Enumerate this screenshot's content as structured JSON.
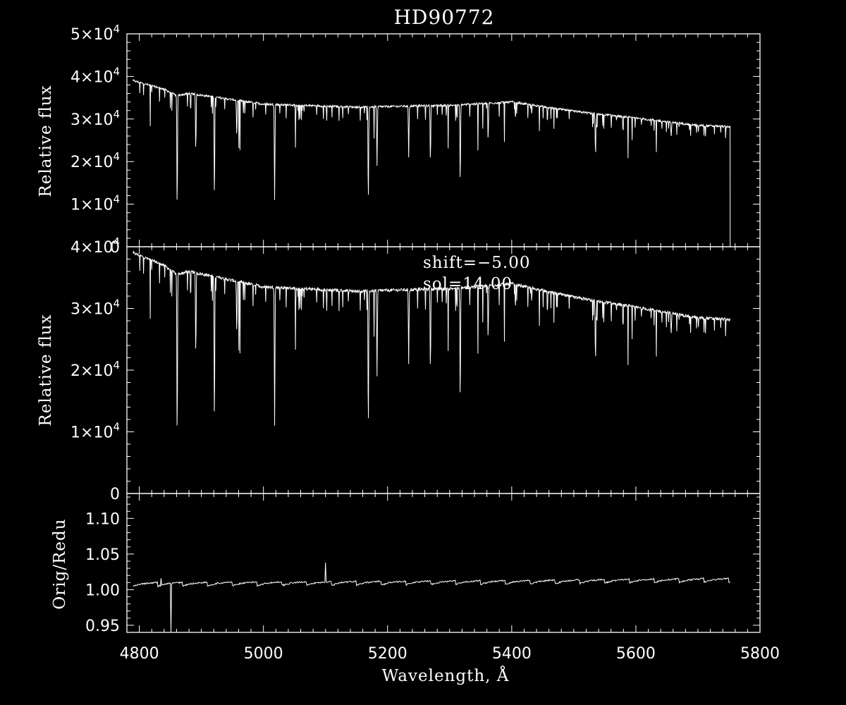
{
  "colors": {
    "background": "#000000",
    "foreground": "#ffffff"
  },
  "title": "HD90772",
  "xlabel": "Wavelength, Å",
  "x_ticks": [
    "4800",
    "5000",
    "5200",
    "5400",
    "5600",
    "5800"
  ],
  "panel1": {
    "ylabel": "Relative flux",
    "y_ticks": [
      {
        "mant": "0",
        "exp": ""
      },
      {
        "mant": "1×10",
        "exp": "4"
      },
      {
        "mant": "2×10",
        "exp": "4"
      },
      {
        "mant": "3×10",
        "exp": "4"
      },
      {
        "mant": "4×10",
        "exp": "4"
      },
      {
        "mant": "5×10",
        "exp": "4"
      }
    ]
  },
  "panel2": {
    "ylabel": "Relative flux",
    "annotation_shift": "shift=−5.00",
    "annotation_sol": "sol=14.00",
    "y_ticks": [
      {
        "mant": "0",
        "exp": ""
      },
      {
        "mant": "1×10",
        "exp": "4"
      },
      {
        "mant": "2×10",
        "exp": "4"
      },
      {
        "mant": "3×10",
        "exp": "4"
      },
      {
        "mant": "4×10",
        "exp": "4"
      }
    ]
  },
  "panel3": {
    "ylabel": "Orig/Redu",
    "y_ticks": [
      "0.95",
      "1.00",
      "1.05",
      "1.10"
    ]
  },
  "chart_data": [
    {
      "type": "line",
      "title": "HD90772",
      "xlabel": "Wavelength, Å",
      "ylabel": "Relative flux",
      "xlim": [
        4780,
        5800
      ],
      "ylim": [
        0,
        50000
      ],
      "grid": false,
      "continuum": {
        "x": [
          4790,
          4840,
          4860,
          4880,
          5000,
          5150,
          5300,
          5400,
          5500,
          5600,
          5700,
          5752
        ],
        "y": [
          39000,
          37000,
          35500,
          36000,
          33500,
          32800,
          33200,
          34000,
          31800,
          30200,
          28500,
          28200
        ]
      },
      "absorption_lines": [
        {
          "x": 4861,
          "y": 9000
        },
        {
          "x": 4891,
          "y": 22500
        },
        {
          "x": 4921,
          "y": 11500
        },
        {
          "x": 4957,
          "y": 26000
        },
        {
          "x": 5018,
          "y": 11000
        },
        {
          "x": 5169,
          "y": 10500
        },
        {
          "x": 5183,
          "y": 19000
        },
        {
          "x": 5234,
          "y": 21000
        },
        {
          "x": 5269,
          "y": 20000
        },
        {
          "x": 5317,
          "y": 15000
        },
        {
          "x": 5362,
          "y": 25000
        },
        {
          "x": 5535,
          "y": 21500
        },
        {
          "x": 5657,
          "y": 26000
        }
      ],
      "end_drop": {
        "x": 5752,
        "y": 0
      }
    },
    {
      "type": "line",
      "ylabel": "Relative flux",
      "xlim": [
        4780,
        5800
      ],
      "ylim": [
        0,
        40000
      ],
      "grid": false,
      "continuum": {
        "x": [
          4790,
          4840,
          4860,
          4880,
          5000,
          5150,
          5300,
          5400,
          5500,
          5600,
          5700,
          5752
        ],
        "y": [
          39000,
          37000,
          35500,
          36000,
          33500,
          32800,
          33200,
          34000,
          31800,
          30200,
          28500,
          28200
        ]
      },
      "absorption_lines": [
        {
          "x": 4861,
          "y": 9000
        },
        {
          "x": 4891,
          "y": 22500
        },
        {
          "x": 4921,
          "y": 11500
        },
        {
          "x": 4957,
          "y": 26000
        },
        {
          "x": 5018,
          "y": 11000
        },
        {
          "x": 5169,
          "y": 10500
        },
        {
          "x": 5183,
          "y": 19000
        },
        {
          "x": 5234,
          "y": 21000
        },
        {
          "x": 5269,
          "y": 20000
        },
        {
          "x": 5317,
          "y": 15000
        },
        {
          "x": 5362,
          "y": 25000
        },
        {
          "x": 5535,
          "y": 21500
        },
        {
          "x": 5657,
          "y": 26000
        }
      ]
    },
    {
      "type": "line",
      "xlabel": "Wavelength, Å",
      "ylabel": "Orig/Redu",
      "xlim": [
        4780,
        5800
      ],
      "ylim": [
        0.94,
        1.135
      ],
      "grid": false,
      "baseline": {
        "x": [
          4790,
          5000,
          5200,
          5400,
          5600,
          5752
        ],
        "y": [
          1.008,
          1.009,
          1.01,
          1.011,
          1.013,
          1.014
        ]
      },
      "scallop_amplitude": 0.004,
      "scallop_period": 40,
      "spikes": [
        {
          "x": 4851,
          "y": 0.94
        },
        {
          "x": 5100,
          "y": 1.038
        },
        {
          "x": 4835,
          "y": 1.016
        }
      ]
    }
  ]
}
